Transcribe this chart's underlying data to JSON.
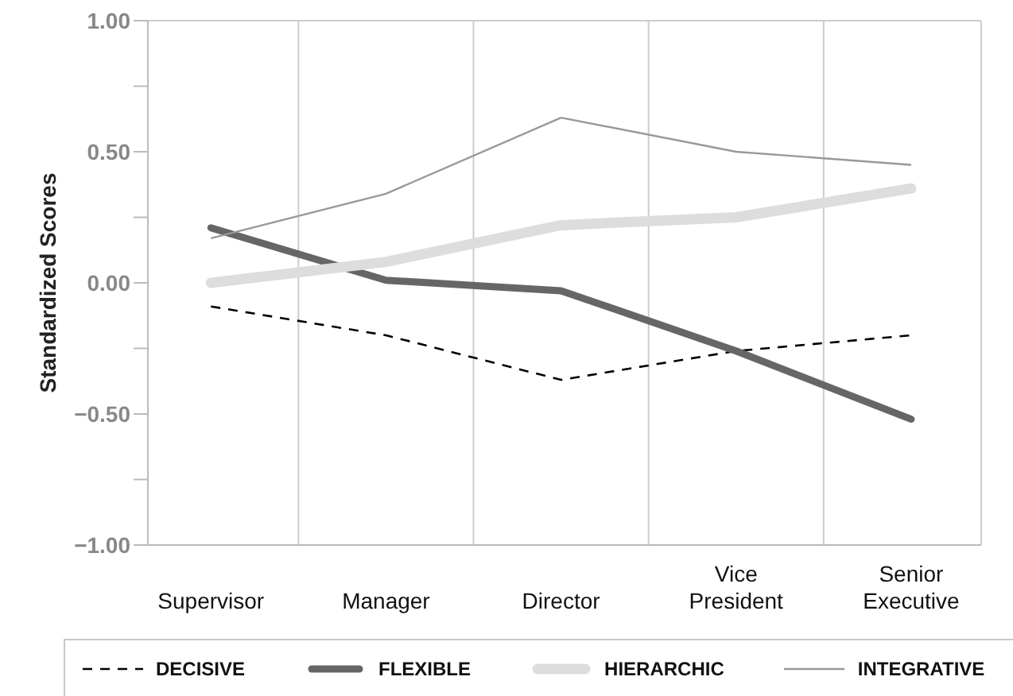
{
  "chart_data": {
    "type": "line",
    "ylabel": "Standardized Scores",
    "categories": [
      "Supervisor",
      "Manager",
      "Director",
      "Vice President",
      "Senior Executive"
    ],
    "series": [
      {
        "name": "DECISIVE",
        "color": "#000000",
        "line_style": "dashed",
        "values": [
          -0.09,
          -0.2,
          -0.37,
          -0.26,
          -0.2
        ]
      },
      {
        "name": "FLEXIBLE",
        "color": "#666666",
        "values": [
          0.21,
          0.01,
          -0.03,
          -0.26,
          -0.52
        ]
      },
      {
        "name": "HIERARCHIC",
        "color": "#dddddd",
        "values": [
          0.0,
          0.08,
          0.22,
          0.25,
          0.36
        ]
      },
      {
        "name": "INTEGRATIVE",
        "color": "#999999",
        "values": [
          0.17,
          0.34,
          0.63,
          0.5,
          0.45
        ]
      }
    ],
    "ylim": [
      -1,
      1
    ],
    "yticks": [
      {
        "value": -1,
        "label": "−1.00"
      },
      {
        "value": -0.75,
        "label": null
      },
      {
        "value": -0.5,
        "label": "−0.50"
      },
      {
        "value": -0.25,
        "label": null
      },
      {
        "value": 0,
        "label": "0.00"
      },
      {
        "value": 0.25,
        "label": null
      },
      {
        "value": 0.5,
        "label": "0.50"
      },
      {
        "value": 0.75,
        "label": null
      },
      {
        "value": 1,
        "label": "1.00"
      }
    ],
    "grid": "x",
    "legend": "bottom",
    "marker": "none",
    "line_style": "solid"
  }
}
